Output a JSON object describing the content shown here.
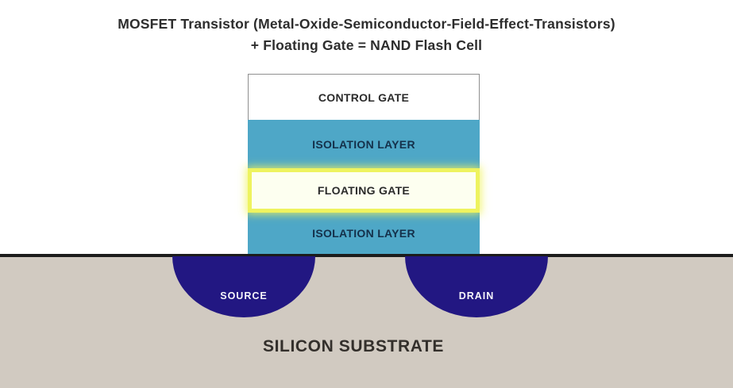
{
  "title": {
    "line1": "MOSFET Transistor (Metal-Oxide-Semiconductor-Field-Effect-Transistors)",
    "line2": "+ Floating Gate = NAND Flash Cell"
  },
  "gate_stack": {
    "layers": [
      {
        "label": "CONTROL GATE",
        "fill": "#ffffff"
      },
      {
        "label": "ISOLATION LAYER",
        "fill": "#4ea7c7"
      },
      {
        "label": "FLOATING GATE",
        "fill": "#fdfff0",
        "border": "#eef35f"
      },
      {
        "label": "ISOLATION LAYER",
        "fill": "#4ea7c7"
      }
    ]
  },
  "substrate": {
    "label": "SILICON SUBSTRATE",
    "fill": "#d1cac1",
    "surface_line_color": "#1c1c1c",
    "regions": [
      {
        "label": "SOURCE",
        "fill": "#221782"
      },
      {
        "label": "DRAIN",
        "fill": "#221782"
      }
    ]
  }
}
